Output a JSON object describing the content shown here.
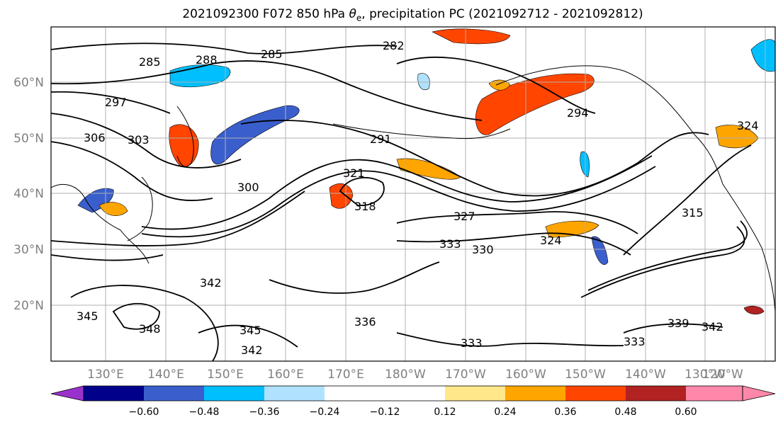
{
  "title": {
    "prefix": "2021092300 F072 850 hPa ",
    "theta": "θ",
    "sub": "e",
    "suffix": ", precipitation PC (2021092712 - 2021092812)"
  },
  "map": {
    "lat_labels": [
      "60°N",
      "50°N",
      "40°N",
      "30°N",
      "20°N"
    ],
    "lon_labels": [
      "130°E",
      "140°E",
      "150°E",
      "160°E",
      "170°E",
      "180°W",
      "170°W",
      "160°W",
      "150°W",
      "140°W",
      "130°W",
      "120°W"
    ],
    "contour_labels": [
      "285",
      "288",
      "285",
      "282",
      "297",
      "306",
      "303",
      "294",
      "291",
      "300",
      "321",
      "318",
      "327",
      "330",
      "333",
      "324",
      "315",
      "342",
      "345",
      "348",
      "345",
      "342",
      "333",
      "336",
      "339",
      "342",
      "333",
      "324"
    ]
  },
  "colorbar": {
    "ticks": [
      "−0.60",
      "−0.48",
      "−0.36",
      "−0.24",
      "−0.12",
      "0.12",
      "0.24",
      "0.36",
      "0.48",
      "0.60"
    ],
    "colors": [
      "#9932cc",
      "#00008b",
      "#3a5fcd",
      "#00bfff",
      "#b0e2ff",
      "#ffffff",
      "#ffe78a",
      "#ffa500",
      "#ff4500",
      "#b22222",
      "#ff88aa"
    ]
  }
}
